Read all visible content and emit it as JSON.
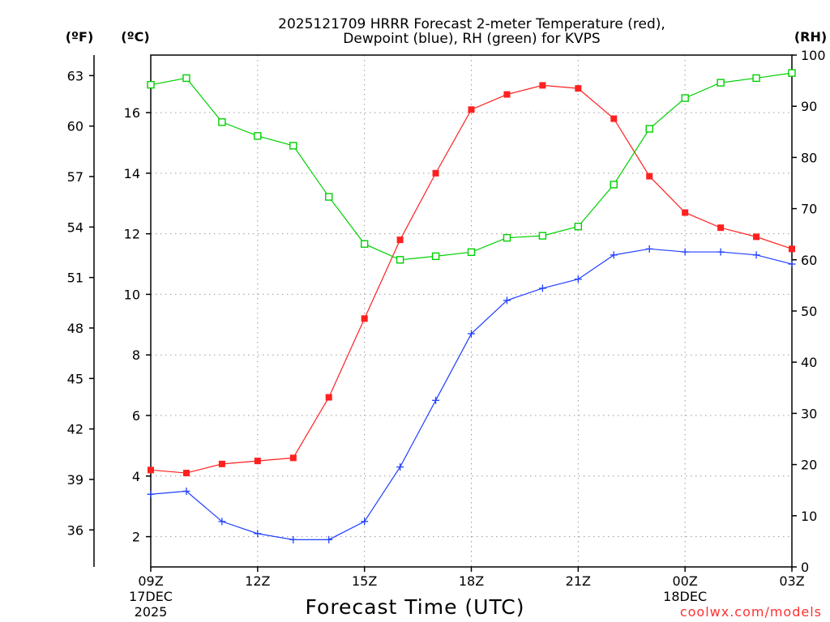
{
  "chart_data": {
    "type": "line",
    "title_line1": "2025121709 HRRR Forecast 2-meter Temperature (red),",
    "title_line2": "Dewpoint (blue), RH (green) for KVPS",
    "xlabel": "Forecast Time (UTC)",
    "credit": "coolwx.com/models",
    "units": {
      "fahrenheit": "(ºF)",
      "celsius": "(ºC)",
      "rh": "(RH)"
    },
    "hours": [
      0,
      1,
      2,
      3,
      4,
      5,
      6,
      7,
      8,
      9,
      10,
      11,
      12,
      13,
      14,
      15,
      16,
      17,
      18
    ],
    "x_range": [
      0,
      18
    ],
    "x_ticks": [
      {
        "hour": 0,
        "label": "09Z",
        "sub1": "17DEC",
        "sub2": "2025"
      },
      {
        "hour": 3,
        "label": "12Z",
        "sub1": "",
        "sub2": ""
      },
      {
        "hour": 6,
        "label": "15Z",
        "sub1": "",
        "sub2": ""
      },
      {
        "hour": 9,
        "label": "18Z",
        "sub1": "",
        "sub2": ""
      },
      {
        "hour": 12,
        "label": "21Z",
        "sub1": "",
        "sub2": ""
      },
      {
        "hour": 15,
        "label": "00Z",
        "sub1": "18DEC",
        "sub2": ""
      },
      {
        "hour": 18,
        "label": "03Z",
        "sub1": "",
        "sub2": ""
      }
    ],
    "celsius_range": [
      1.0,
      17.9
    ],
    "celsius_ticks": [
      "2",
      "4",
      "6",
      "8",
      "10",
      "12",
      "14",
      "16"
    ],
    "fahrenheit_ticks": [
      "36",
      "39",
      "42",
      "45",
      "48",
      "51",
      "54",
      "57",
      "60",
      "63"
    ],
    "rh_range": [
      0,
      100
    ],
    "rh_ticks": [
      "0",
      "10",
      "20",
      "30",
      "40",
      "50",
      "60",
      "70",
      "80",
      "90",
      "100"
    ],
    "series": [
      {
        "name": "2-meter Temperature",
        "color": "#ff2020",
        "marker": "filled-square",
        "axis": "celsius",
        "values": [
          4.2,
          4.1,
          4.4,
          4.5,
          4.6,
          6.6,
          9.2,
          11.8,
          14.0,
          16.1,
          16.6,
          16.9,
          16.8,
          15.8,
          13.9,
          12.7,
          12.2,
          11.9,
          11.5
        ]
      },
      {
        "name": "Dewpoint",
        "color": "#1f3fff",
        "marker": "plus",
        "axis": "celsius",
        "values": [
          3.4,
          3.5,
          2.5,
          2.1,
          1.9,
          1.9,
          2.5,
          4.3,
          6.5,
          8.7,
          9.8,
          10.2,
          10.5,
          11.3,
          11.5,
          11.4,
          11.4,
          11.3,
          11.0
        ]
      },
      {
        "name": "RH",
        "color": "#00d000",
        "marker": "open-square",
        "axis": "rh",
        "values": [
          94.2,
          95.5,
          86.9,
          84.2,
          82.3,
          72.3,
          63.1,
          60.0,
          60.7,
          61.5,
          64.3,
          64.7,
          66.5,
          74.7,
          85.6,
          91.6,
          94.6,
          95.5,
          96.5
        ]
      }
    ]
  }
}
